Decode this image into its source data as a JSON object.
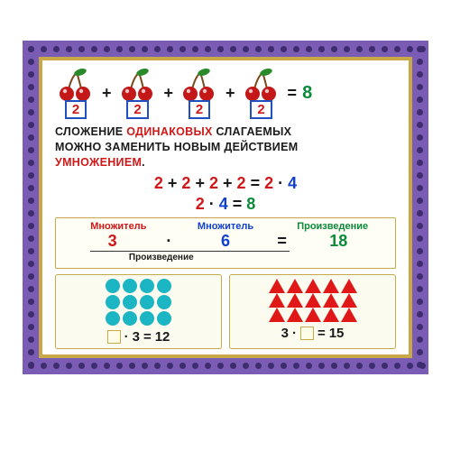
{
  "frame": {
    "outer_color": "#7b5cb5",
    "dot_color": "#3d2c6e",
    "gold_color": "#c9a847",
    "bg": "#ffffff"
  },
  "cherries": {
    "groups": 4,
    "per_group": 2,
    "cherry_color": "#c41818",
    "leaf_color": "#2a8a2a",
    "box_border": "#2050c0",
    "box_num": "2",
    "op": "+",
    "eq": "=",
    "result": "8"
  },
  "text": {
    "line1a": "СЛОЖЕНИЕ ",
    "line1b": "ОДИНАКОВЫХ",
    "line1c": " СЛАГАЕМЫХ",
    "line2": "МОЖНО ЗАМЕНИТЬ НОВЫМ ДЕЙСТВИЕМ",
    "line3": "УМНОЖЕНИЕМ",
    "period": "."
  },
  "eq1": {
    "a": "2",
    "plus": "+",
    "b": "2",
    "c": "2",
    "d": "2",
    "eq": "=",
    "e": "2",
    "dot": "·",
    "f": "4"
  },
  "eq2": {
    "a": "2",
    "dot": "·",
    "b": "4",
    "eq": "=",
    "c": "8"
  },
  "terms": {
    "label1": "Множитель",
    "label2": "Множитель",
    "label3": "Произведение",
    "n1": "3",
    "dot": "·",
    "n2": "6",
    "eq": "=",
    "n3": "18",
    "product_label": "Произведение"
  },
  "circles": {
    "rows": 3,
    "cols": 4,
    "color": "#1bb5c4",
    "eq_dot": "·",
    "eq_b": "3",
    "eq_eq": "=",
    "eq_r": "12"
  },
  "triangles": {
    "rows": 3,
    "cols": 5,
    "color": "#e01818",
    "eq_a": "3",
    "eq_dot": "·",
    "eq_eq": "=",
    "eq_r": "15"
  }
}
